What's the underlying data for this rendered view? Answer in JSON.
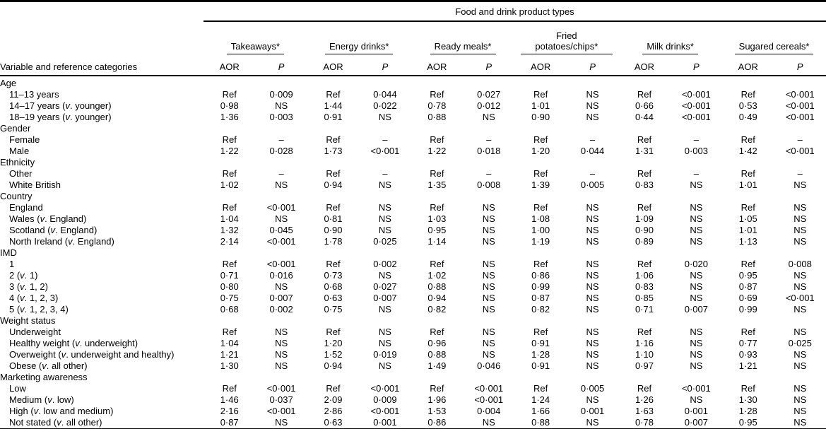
{
  "table": {
    "spanner": "Food and drink product types",
    "stub_header": "Variable and reference categories",
    "subheaders": {
      "aor": "AOR",
      "p": "P"
    },
    "groups": [
      {
        "label": "Takeaways*"
      },
      {
        "label": "Energy drinks*"
      },
      {
        "label": "Ready meals*"
      },
      {
        "label": "Fried potatoes/chips*"
      },
      {
        "label": "Milk drinks*"
      },
      {
        "label": "Sugared cereals*"
      }
    ],
    "sections": [
      {
        "title": "Age",
        "rows": [
          {
            "label": "11–13 years",
            "values": [
              "Ref",
              "0·009",
              "Ref",
              "0·044",
              "Ref",
              "0·027",
              "Ref",
              "NS",
              "Ref",
              "<0·001",
              "Ref",
              "<0·001"
            ]
          },
          {
            "label": "14–17 years (v. younger)",
            "values": [
              "0·98",
              "NS",
              "1·44",
              "0·022",
              "0·78",
              "0·012",
              "1·01",
              "NS",
              "0·66",
              "<0·001",
              "0·53",
              "<0·001"
            ]
          },
          {
            "label": "18–19 years (v. younger)",
            "values": [
              "1·36",
              "0·003",
              "0·91",
              "NS",
              "0·88",
              "NS",
              "0·90",
              "NS",
              "0·44",
              "<0·001",
              "0·49",
              "<0·001"
            ]
          }
        ]
      },
      {
        "title": "Gender",
        "rows": [
          {
            "label": "Female",
            "values": [
              "Ref",
              "–",
              "Ref",
              "–",
              "Ref",
              "–",
              "Ref",
              "–",
              "Ref",
              "–",
              "Ref",
              "–"
            ]
          },
          {
            "label": "Male",
            "values": [
              "1·22",
              "0·028",
              "1·73",
              "<0·001",
              "1·22",
              "0·018",
              "1·20",
              "0·044",
              "1·31",
              "0·003",
              "1·42",
              "<0·001"
            ]
          }
        ]
      },
      {
        "title": "Ethnicity",
        "rows": [
          {
            "label": "Other",
            "values": [
              "Ref",
              "–",
              "Ref",
              "–",
              "Ref",
              "–",
              "Ref",
              "–",
              "Ref",
              "–",
              "Ref",
              "–"
            ]
          },
          {
            "label": "White British",
            "values": [
              "1·02",
              "NS",
              "0·94",
              "NS",
              "1·35",
              "0·008",
              "1·39",
              "0·005",
              "0·83",
              "NS",
              "1·01",
              "NS"
            ]
          }
        ]
      },
      {
        "title": "Country",
        "rows": [
          {
            "label": "England",
            "values": [
              "Ref",
              "<0·001",
              "Ref",
              "NS",
              "Ref",
              "NS",
              "Ref",
              "NS",
              "Ref",
              "NS",
              "Ref",
              "NS"
            ]
          },
          {
            "label": "Wales (v. England)",
            "values": [
              "1·04",
              "NS",
              "0·81",
              "NS",
              "1·03",
              "NS",
              "1·08",
              "NS",
              "1·09",
              "NS",
              "1·05",
              "NS"
            ]
          },
          {
            "label": "Scotland (v. England)",
            "values": [
              "1·32",
              "0·045",
              "0·90",
              "NS",
              "0·95",
              "NS",
              "1·00",
              "NS",
              "0·90",
              "NS",
              "1·01",
              "NS"
            ]
          },
          {
            "label": "North Ireland (v. England)",
            "values": [
              "2·14",
              "<0·001",
              "1·78",
              "0·025",
              "1·14",
              "NS",
              "1·19",
              "NS",
              "0·89",
              "NS",
              "1·13",
              "NS"
            ]
          }
        ]
      },
      {
        "title": "IMD",
        "rows": [
          {
            "label": "1",
            "values": [
              "Ref",
              "<0·001",
              "Ref",
              "0·002",
              "Ref",
              "NS",
              "Ref",
              "NS",
              "Ref",
              "0·020",
              "Ref",
              "0·008"
            ]
          },
          {
            "label": "2 (v. 1)",
            "values": [
              "0·71",
              "0·016",
              "0·73",
              "NS",
              "1·02",
              "NS",
              "0·86",
              "NS",
              "1·06",
              "NS",
              "0·95",
              "NS"
            ]
          },
          {
            "label": "3 (v. 1, 2)",
            "values": [
              "0·80",
              "NS",
              "0·68",
              "0·027",
              "0·88",
              "NS",
              "0·99",
              "NS",
              "0·83",
              "NS",
              "0·87",
              "NS"
            ]
          },
          {
            "label": "4 (v. 1, 2, 3)",
            "values": [
              "0·75",
              "0·007",
              "0·63",
              "0·007",
              "0·94",
              "NS",
              "0·87",
              "NS",
              "0·85",
              "NS",
              "0·69",
              "<0·001"
            ]
          },
          {
            "label": "5 (v. 1, 2, 3, 4)",
            "values": [
              "0·68",
              "0·002",
              "0·75",
              "NS",
              "0·82",
              "NS",
              "0·82",
              "NS",
              "0·71",
              "0·007",
              "0·99",
              "NS"
            ]
          }
        ]
      },
      {
        "title": "Weight status",
        "rows": [
          {
            "label": "Underweight",
            "values": [
              "Ref",
              "NS",
              "Ref",
              "NS",
              "Ref",
              "NS",
              "Ref",
              "NS",
              "Ref",
              "NS",
              "Ref",
              "NS"
            ]
          },
          {
            "label": "Healthy weight (v. underweight)",
            "values": [
              "1·04",
              "NS",
              "1·20",
              "NS",
              "0·96",
              "NS",
              "0·91",
              "NS",
              "1·16",
              "NS",
              "0·77",
              "0·025"
            ]
          },
          {
            "label": "Overweight (v. underweight and healthy)",
            "values": [
              "1·21",
              "NS",
              "1·52",
              "0·019",
              "0·88",
              "NS",
              "1·28",
              "NS",
              "1·10",
              "NS",
              "0·93",
              "NS"
            ]
          },
          {
            "label": "Obese (v. all other)",
            "values": [
              "1·30",
              "NS",
              "0·94",
              "NS",
              "1·49",
              "0·046",
              "0·91",
              "NS",
              "0·97",
              "NS",
              "1·21",
              "NS"
            ]
          }
        ]
      },
      {
        "title": "Marketing awareness",
        "rows": [
          {
            "label": "Low",
            "values": [
              "Ref",
              "<0·001",
              "Ref",
              "<0·001",
              "Ref",
              "<0·001",
              "Ref",
              "0·005",
              "Ref",
              "<0·001",
              "Ref",
              "NS"
            ]
          },
          {
            "label": "Medium (v. low)",
            "values": [
              "1·46",
              "0·037",
              "2·09",
              "0·009",
              "1·96",
              "<0·001",
              "1·24",
              "NS",
              "1·26",
              "NS",
              "1·30",
              "NS"
            ]
          },
          {
            "label": "High (v. low and medium)",
            "values": [
              "2·16",
              "<0·001",
              "2·86",
              "<0·001",
              "1·53",
              "0·004",
              "1·66",
              "0·001",
              "1·63",
              "0·001",
              "1·28",
              "NS"
            ]
          },
          {
            "label": "Not stated (v. all other)",
            "values": [
              "0·87",
              "NS",
              "0·63",
              "0·001",
              "0·86",
              "NS",
              "0·88",
              "NS",
              "0·78",
              "0·007",
              "0·95",
              "NS"
            ]
          }
        ]
      }
    ]
  }
}
